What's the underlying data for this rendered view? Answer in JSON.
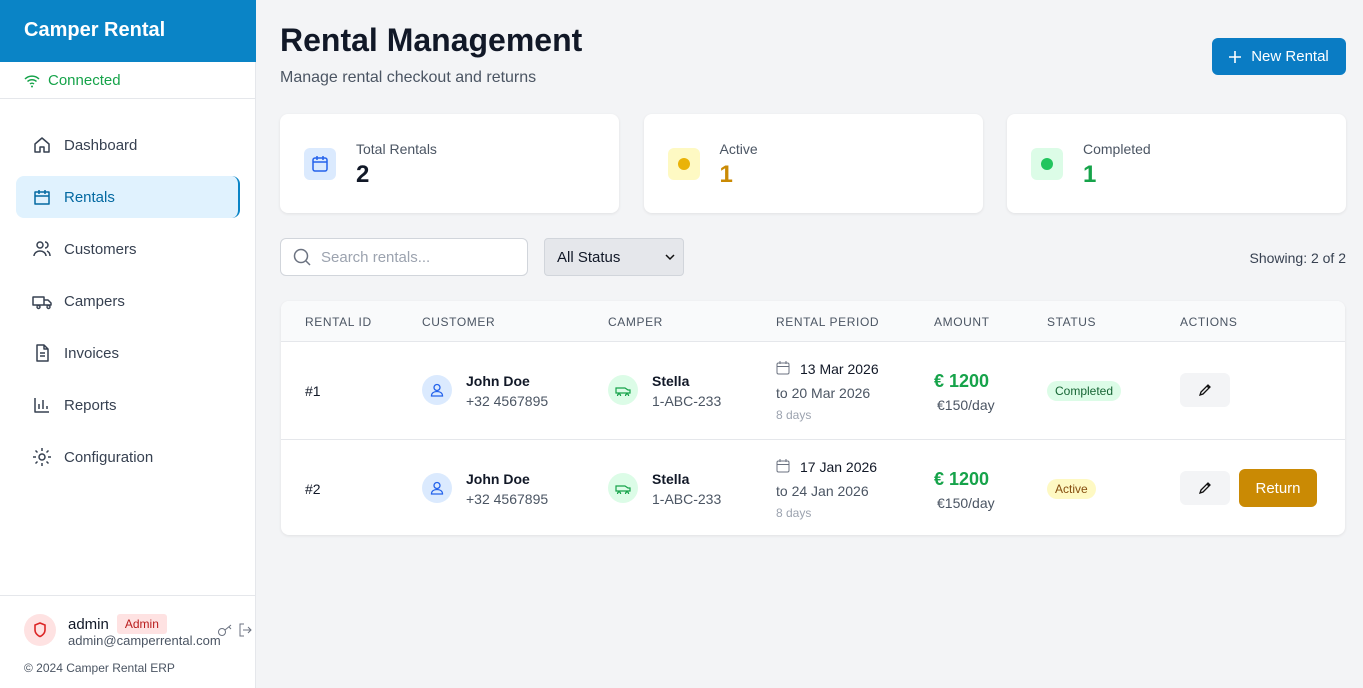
{
  "sidebar": {
    "brand": "Camper Rental",
    "status": "Connected",
    "nav": [
      "Dashboard",
      "Rentals",
      "Customers",
      "Campers",
      "Invoices",
      "Reports",
      "Configuration"
    ],
    "user": {
      "name": "admin",
      "role": "Admin",
      "email": "admin@camperrental.com"
    },
    "footer": "© 2024 Camper Rental ERP"
  },
  "header": {
    "title": "Rental Management",
    "subtitle": "Manage rental checkout and returns",
    "button": "New Rental"
  },
  "stats": [
    {
      "label": "Total Rentals",
      "value": 2
    },
    {
      "label": "Active",
      "value": 1
    },
    {
      "label": "Completed",
      "value": 1
    }
  ],
  "filters": {
    "search_placeholder": "Search rentals...",
    "status_select": "All Status",
    "showing": "Showing: 2 of 2"
  },
  "table": {
    "columns": [
      "RENTAL ID",
      "CUSTOMER",
      "CAMPER",
      "RENTAL PERIOD",
      "AMOUNT",
      "STATUS",
      "ACTIONS"
    ],
    "rows": [
      {
        "id": "#1",
        "customer": "John Doe",
        "phone": "+32 4567895",
        "camper": "Stella",
        "plate": "1-ABC-233",
        "start": "13 Mar 2026",
        "end": "to 20 Mar 2026",
        "duration": "8 days",
        "amount": "€ 1200",
        "rate": "€150/day",
        "status": "Completed"
      },
      {
        "id": "#2",
        "customer": "John Doe",
        "phone": "+32 4567895",
        "camper": "Stella",
        "plate": "1-ABC-233",
        "start": "17 Jan 2026",
        "end": "to 24 Jan 2026",
        "duration": "8 days",
        "amount": "€ 1200",
        "rate": "€150/day",
        "status": "Active",
        "action": "Return"
      }
    ]
  }
}
